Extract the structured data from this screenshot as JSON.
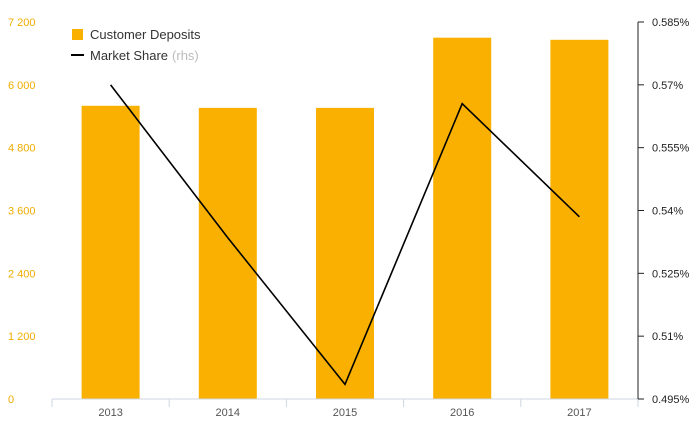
{
  "chart_data": {
    "type": "bar",
    "categories": [
      "2013",
      "2014",
      "2015",
      "2016",
      "2017"
    ],
    "series": [
      {
        "name": "Customer Deposits",
        "type": "bar",
        "axis": "left",
        "color": "#f9b000",
        "values": [
          5600,
          5560,
          5560,
          6900,
          6860
        ]
      },
      {
        "name": "Market Share",
        "name_note": "(rhs)",
        "type": "line",
        "axis": "right",
        "color": "#000000",
        "values": [
          0.57,
          0.5335,
          0.4985,
          0.5655,
          0.5385
        ]
      }
    ],
    "y_left": {
      "range": [
        0,
        7200
      ],
      "ticks": [
        0,
        1200,
        2400,
        3600,
        4800,
        6000,
        7200
      ],
      "tick_labels": [
        "0",
        "1 200",
        "2 400",
        "3 600",
        "4 800",
        "6 000",
        "7 200"
      ]
    },
    "y_right": {
      "range": [
        0.495,
        0.585
      ],
      "ticks": [
        0.495,
        0.51,
        0.525,
        0.54,
        0.555,
        0.57,
        0.585
      ],
      "tick_labels": [
        "0.495%",
        "0.51%",
        "0.525%",
        "0.54%",
        "0.555%",
        "0.57%",
        "0.585%"
      ]
    },
    "grid": false,
    "legend_position": "top-left"
  }
}
